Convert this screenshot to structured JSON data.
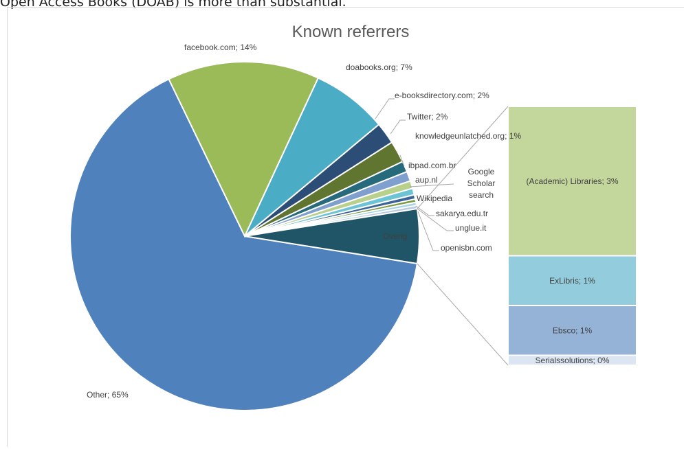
{
  "header_text": "Open Access Books (DOAB) is more than substantial.",
  "chart_data": {
    "type": "pie",
    "subtype": "bar-of-pie",
    "title": "Known referrers",
    "pie_slices": [
      {
        "label": "Other; 65%",
        "name": "Other",
        "value": 65,
        "color": "#4f81bd"
      },
      {
        "label": "facebook.com; 14%",
        "name": "facebook.com",
        "value": 14,
        "color": "#9bbb59"
      },
      {
        "label": "doabooks.org; 7%",
        "name": "doabooks.org",
        "value": 7,
        "color": "#4bacc6"
      },
      {
        "label": "e-booksdirectory.com; 2%",
        "name": "e-booksdirectory.com",
        "value": 2,
        "color": "#2c4d75"
      },
      {
        "label": "Twitter; 2%",
        "name": "Twitter",
        "value": 2,
        "color": "#5f7530"
      },
      {
        "label": "knowledgeunlatched.org; 1%",
        "name": "knowledgeunlatched.org",
        "value": 1,
        "color": "#276a7c"
      },
      {
        "label": "ibpad.com.br",
        "name": "ibpad.com.br",
        "value": 0.9,
        "color": "#7f9fcf"
      },
      {
        "label": "aup.nl",
        "name": "aup.nl",
        "value": 0.7,
        "color": "#b7d08b"
      },
      {
        "label": "Google Scholar search",
        "name": "Google Scholar search",
        "value": 0.6,
        "color": "#6cc3d5"
      },
      {
        "label": "Wikipedia",
        "name": "Wikipedia",
        "value": 0.4,
        "color": "#3a6399"
      },
      {
        "label": "sakarya.edu.tr",
        "name": "sakarya.edu.tr",
        "value": 0.3,
        "color": "#7a9a3e"
      },
      {
        "label": "unglue.it",
        "name": "unglue.it",
        "value": 0.3,
        "color": "#a5d5e2"
      },
      {
        "label": "openisbn.com",
        "name": "openisbn.com",
        "value": 0.3,
        "color": "#b9c9e2"
      },
      {
        "label": "Overig",
        "name": "Overig",
        "value": 5,
        "color": "#1f5566"
      }
    ],
    "bar_segments": [
      {
        "label": "(Academic) Libraries; 3%",
        "name": "(Academic) Libraries",
        "value": 3,
        "color": "#c3d69b"
      },
      {
        "label": "ExLibris; 1%",
        "name": "ExLibris",
        "value": 1,
        "color": "#93cddd"
      },
      {
        "label": "Ebsco; 1%",
        "name": "Ebsco",
        "value": 1,
        "color": "#95b3d7"
      },
      {
        "label": "Serialssolutions; 0%",
        "name": "Serialssolutions",
        "value": 0.2,
        "color": "#dce6f2"
      }
    ]
  }
}
